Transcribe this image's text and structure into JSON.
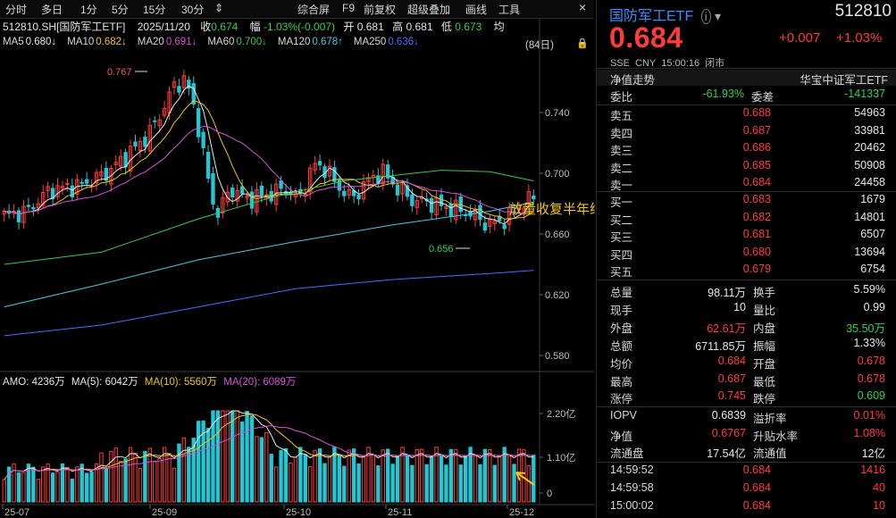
{
  "toolbar": {
    "items": [
      "分时",
      "多日",
      "1分",
      "5分",
      "15分",
      "30分",
      "⇕"
    ],
    "right_items": [
      "综合屏",
      "F9",
      "前复权",
      "超级叠加",
      "画线",
      "工具"
    ],
    "close": "×"
  },
  "info": {
    "title": "512810.SH[国防军工ETF]",
    "date": "2025/11/20",
    "close_label": "收",
    "close_val": "0.674",
    "range_label": "幅",
    "range_val": "-1.03%(-0.007)",
    "open_label": "开",
    "open_val": "0.681",
    "high_label": "高",
    "high_val": "0.681",
    "low_label": "低",
    "low_val": "0.673",
    "avg_label": "均"
  },
  "ma_line": [
    {
      "label": "MA5",
      "value": "0.680↓",
      "color": "#e8e8e8"
    },
    {
      "label": "MA10",
      "value": "0.682↓",
      "color": "#f0c419"
    },
    {
      "label": "MA20",
      "value": "0.691↓",
      "color": "#d455d8"
    },
    {
      "label": "MA60",
      "value": "0.700↓",
      "color": "#3ac754"
    },
    {
      "label": "MA120",
      "value": "0.678↑",
      "color": "#4ec9e0"
    },
    {
      "label": "MA250",
      "value": "0.636↓",
      "color": "#4e6bff"
    }
  ],
  "count_badge": "(84日)",
  "chart_data": [
    {
      "type": "candlestick",
      "y_ticks": [
        "0.740",
        "0.700",
        "0.660",
        "0.620",
        "0.580"
      ],
      "ylim": [
        0.57,
        0.78
      ],
      "x_ticks": [
        "25-07",
        "25-09",
        "25-10",
        "25-11",
        "25-12"
      ],
      "annotations": [
        "0.767",
        "0.656",
        "放量收复半年线"
      ],
      "colors": {
        "up": "#ff3b3b",
        "down": "#20c7d4"
      }
    },
    {
      "type": "bar",
      "title": "AMO: 4236万 MA(5): 6042万 MA(10): 5560万 MA(20): 6089万",
      "y_ticks": [
        "2.20亿",
        "1.10亿",
        "0"
      ]
    }
  ],
  "amo": {
    "amo": "AMO: 4236万",
    "ma5": "MA(5): 6042万",
    "ma10": "MA(10): 5560万",
    "ma20": "MA(20): 6089万"
  },
  "quote": {
    "name": "国防军工ETF",
    "code": "512810",
    "price": "0.684",
    "change": "+0.007",
    "change_pct": "+1.03%",
    "exchange": "SSE",
    "currency": "CNY",
    "time": "15:00:16",
    "status": "闭市",
    "nav_label": "净值走势",
    "fund_company": "华宝中证军工ETF",
    "weibi_label": "委比",
    "weibi": "-61.93%",
    "weicha_label": "委差",
    "weicha": "-141337",
    "asks": [
      {
        "label": "卖五",
        "price": "0.688",
        "vol": "54963"
      },
      {
        "label": "卖四",
        "price": "0.687",
        "vol": "33981"
      },
      {
        "label": "卖三",
        "price": "0.686",
        "vol": "20462"
      },
      {
        "label": "卖二",
        "price": "0.685",
        "vol": "50908"
      },
      {
        "label": "卖一",
        "price": "0.684",
        "vol": "24458"
      }
    ],
    "bids": [
      {
        "label": "买一",
        "price": "0.683",
        "vol": "1679"
      },
      {
        "label": "买二",
        "price": "0.682",
        "vol": "14801"
      },
      {
        "label": "买三",
        "price": "0.681",
        "vol": "6507"
      },
      {
        "label": "买四",
        "price": "0.680",
        "vol": "13694"
      },
      {
        "label": "买五",
        "price": "0.679",
        "vol": "6754"
      }
    ],
    "stats": [
      {
        "l1": "总量",
        "v1": "98.11万",
        "c1": "white",
        "l2": "换手",
        "v2": "5.59%",
        "c2": "white"
      },
      {
        "l1": "现手",
        "v1": "10",
        "c1": "white",
        "l2": "量比",
        "v2": "0.99",
        "c2": "white"
      },
      {
        "l1": "外盘",
        "v1": "62.61万",
        "c1": "red",
        "l2": "内盘",
        "v2": "35.50万",
        "c2": "green"
      },
      {
        "l1": "总额",
        "v1": "6711.85万",
        "c1": "white",
        "l2": "振幅",
        "v2": "1.33%",
        "c2": "white"
      },
      {
        "l1": "均价",
        "v1": "0.684",
        "c1": "red",
        "l2": "开盘",
        "v2": "0.678",
        "c2": "red"
      },
      {
        "l1": "最高",
        "v1": "0.687",
        "c1": "red",
        "l2": "最低",
        "v2": "0.678",
        "c2": "red"
      },
      {
        "l1": "涨停",
        "v1": "0.745",
        "c1": "red",
        "l2": "跌停",
        "v2": "0.609",
        "c2": "green"
      }
    ],
    "extra": [
      {
        "l1": "IOPV",
        "v1": "0.6839",
        "c1": "white",
        "l2": "溢折率",
        "v2": "0.01%",
        "c2": "red"
      },
      {
        "l1": "净值",
        "v1": "0.6767",
        "c1": "red",
        "l2": "升贴水率",
        "v2": "1.08%",
        "c2": "red"
      },
      {
        "l1": "流通盘",
        "v1": "17.54亿",
        "c1": "white",
        "l2": "流通值",
        "v2": "12亿",
        "c2": "white"
      }
    ],
    "ticks": [
      {
        "time": "14:59:52",
        "price": "0.684",
        "vol": "1416"
      },
      {
        "time": "14:59:58",
        "price": "0.684",
        "vol": "40"
      },
      {
        "time": "15:00:02",
        "price": "0.684",
        "vol": "10"
      }
    ]
  }
}
